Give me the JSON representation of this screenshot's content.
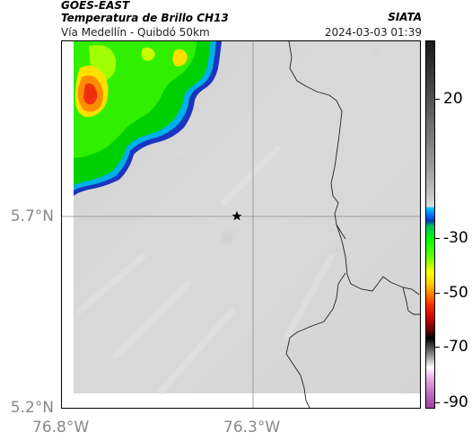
{
  "header": {
    "satellite": "GOES-EAST",
    "product": "Temperatura de Brillo CH13",
    "route": "Vía Medellín - Quibdó 50km",
    "organization": "SIATA",
    "timestamp": "2024-03-03 01:39"
  },
  "map": {
    "lat_labels": [
      "5.7°N",
      "5.2°N"
    ],
    "lon_labels": [
      "76.8°W",
      "76.3°W"
    ],
    "marker_icon": "star-icon"
  },
  "colorbar": {
    "labels": [
      "20",
      "-30",
      "-50",
      "-70",
      "-90"
    ],
    "colors": {
      "warm_gray": "#dcdcdc",
      "cyan": "#00c8ff",
      "blue": "#0040c0",
      "green": "#00e000",
      "yellow": "#ffff00",
      "orange": "#ff8000",
      "red": "#e00000",
      "magenta": "#a040a0"
    }
  }
}
